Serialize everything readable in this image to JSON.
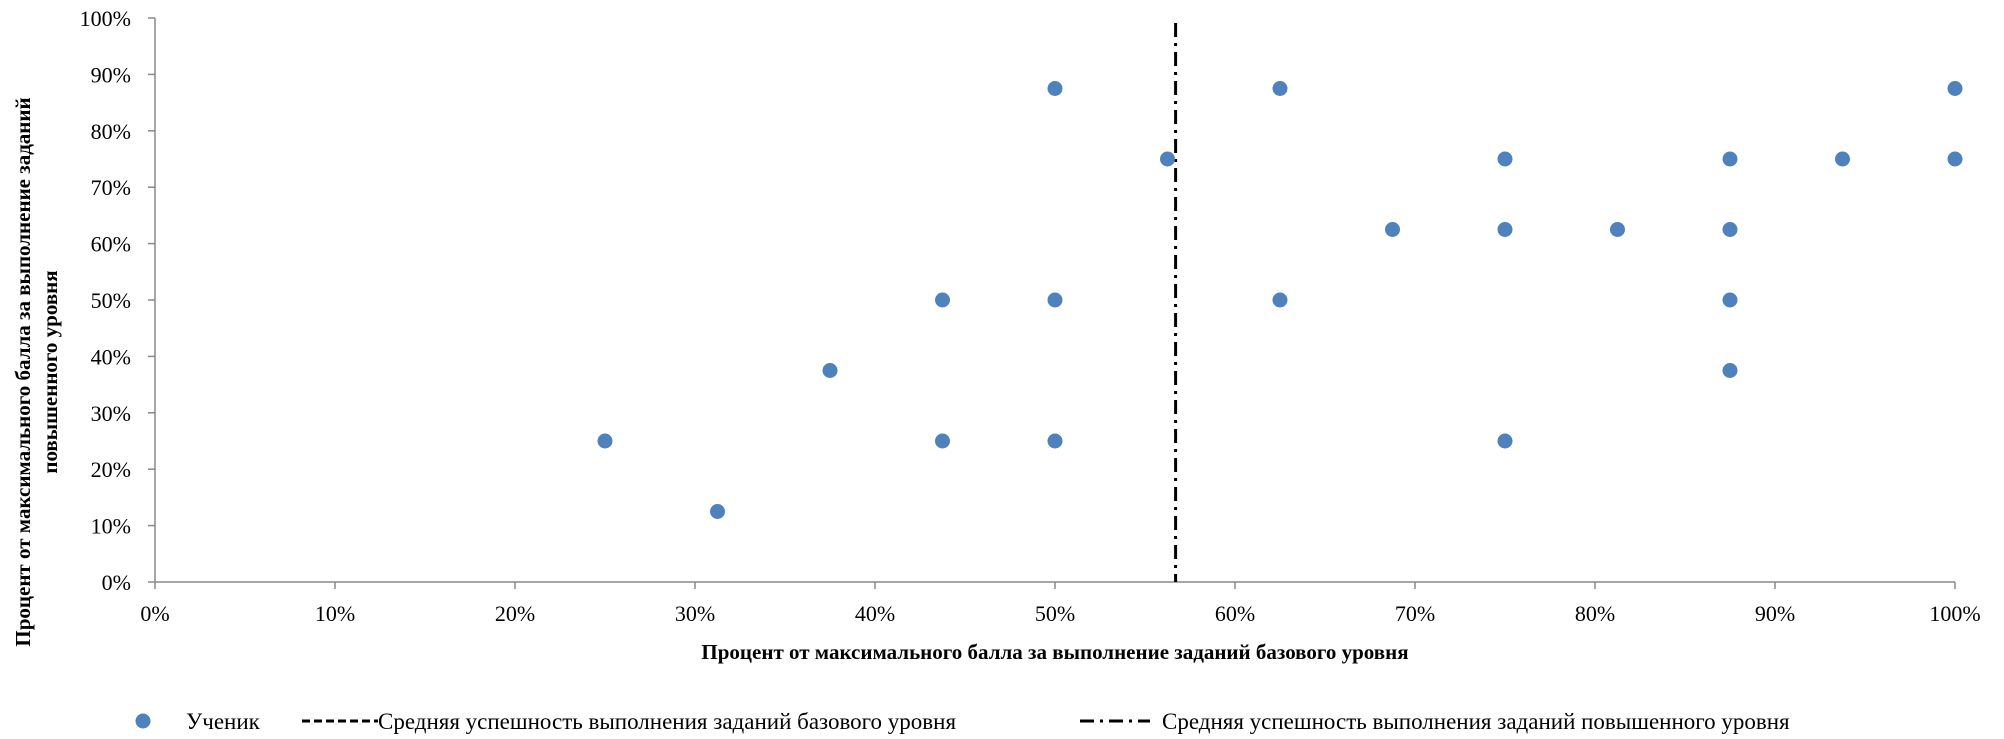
{
  "chart_data": {
    "type": "scatter",
    "title": "",
    "xlabel": "Процент от максимального балла за выполнение заданий базового уровня",
    "ylabel_lines": [
      "Процент от максимального балла за выполнение заданий",
      "повышенного уровня"
    ],
    "xlim": [
      0,
      100
    ],
    "ylim": [
      0,
      100
    ],
    "x_ticks": [
      "0%",
      "10%",
      "20%",
      "30%",
      "40%",
      "50%",
      "60%",
      "70%",
      "80%",
      "90%",
      "100%"
    ],
    "y_ticks": [
      "0%",
      "10%",
      "20%",
      "30%",
      "40%",
      "50%",
      "60%",
      "70%",
      "80%",
      "90%",
      "100%"
    ],
    "grid": false,
    "legend_position": "bottom",
    "series": [
      {
        "name": "Ученик",
        "color": "#4F81BD",
        "points": [
          {
            "x": 25,
            "y": 25
          },
          {
            "x": 31.25,
            "y": 12.5
          },
          {
            "x": 37.5,
            "y": 37.5
          },
          {
            "x": 43.75,
            "y": 50
          },
          {
            "x": 43.75,
            "y": 25
          },
          {
            "x": 50,
            "y": 87.5
          },
          {
            "x": 50,
            "y": 50
          },
          {
            "x": 50,
            "y": 25
          },
          {
            "x": 56.25,
            "y": 75
          },
          {
            "x": 62.5,
            "y": 87.5
          },
          {
            "x": 62.5,
            "y": 50
          },
          {
            "x": 68.75,
            "y": 62.5
          },
          {
            "x": 75,
            "y": 75
          },
          {
            "x": 75,
            "y": 62.5
          },
          {
            "x": 75,
            "y": 25
          },
          {
            "x": 81.25,
            "y": 62.5
          },
          {
            "x": 87.5,
            "y": 75
          },
          {
            "x": 87.5,
            "y": 62.5
          },
          {
            "x": 87.5,
            "y": 50
          },
          {
            "x": 87.5,
            "y": 37.5
          },
          {
            "x": 93.75,
            "y": 75
          },
          {
            "x": 100,
            "y": 87.5
          },
          {
            "x": 100,
            "y": 75
          }
        ]
      }
    ],
    "reference_lines": [
      {
        "name": "Средняя успешность выполнения заданий базового уровня",
        "style": "dashed",
        "orientation": "horizontal",
        "value": null
      },
      {
        "name": "Средняя успешность выполнения заданий повышенного уровня",
        "style": "dash-dot",
        "orientation": "vertical",
        "value": 56.7
      }
    ]
  }
}
